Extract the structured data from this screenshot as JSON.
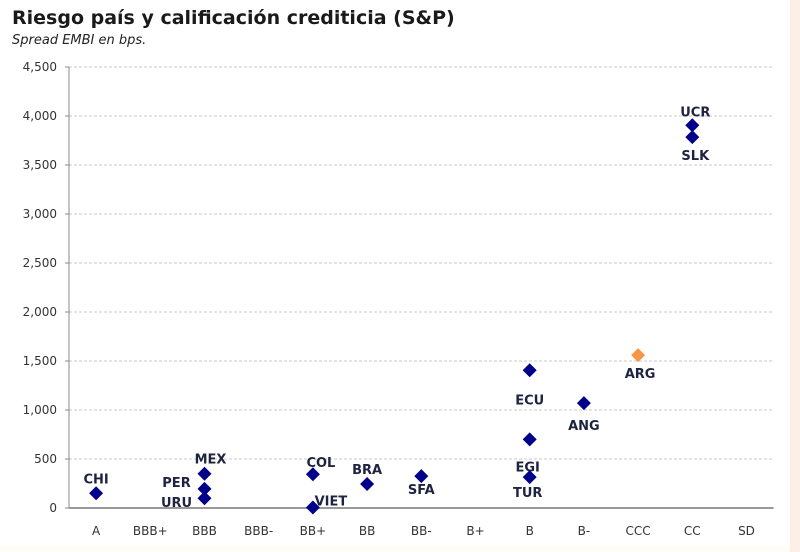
{
  "chart_data": {
    "type": "scatter",
    "title": "Riesgo país y calificación crediticia (S&P)",
    "subtitle": "Spread EMBI en bps.",
    "xlabel": "",
    "ylabel": "",
    "categories": [
      "A",
      "BBB+",
      "BBB",
      "BBB-",
      "BB+",
      "BB",
      "BB-",
      "B+",
      "B",
      "B-",
      "CCC",
      "CC",
      "SD"
    ],
    "ylim": [
      0,
      4500
    ],
    "yticks": [
      0,
      500,
      1000,
      1500,
      2000,
      2500,
      3000,
      3500,
      4000,
      4500
    ],
    "ytick_labels": [
      "0",
      "500",
      "1,000",
      "1,500",
      "2,000",
      "2,500",
      "3,000",
      "3,500",
      "4,000",
      "4,500"
    ],
    "grid": "horizontal dashed",
    "colors": {
      "default": "#00008b",
      "highlight": "#f79646"
    },
    "points": [
      {
        "label": "CHI",
        "category": "A",
        "y": 150
      },
      {
        "label": "MEX",
        "category": "BBB",
        "y": 350
      },
      {
        "label": "PER",
        "category": "BBB",
        "y": 195
      },
      {
        "label": "URU",
        "category": "BBB",
        "y": 100
      },
      {
        "label": "COL",
        "category": "BB+",
        "y": 345
      },
      {
        "label": "VIET",
        "category": "BB+",
        "y": 5
      },
      {
        "label": "BRA",
        "category": "BB",
        "y": 245
      },
      {
        "label": "SFA",
        "category": "BB-",
        "y": 325
      },
      {
        "label": "ECU",
        "category": "B",
        "y": 1405
      },
      {
        "label": "EGI",
        "category": "B",
        "y": 700
      },
      {
        "label": "TUR",
        "category": "B",
        "y": 315
      },
      {
        "label": "ANG",
        "category": "B-",
        "y": 1070
      },
      {
        "label": "ARG",
        "category": "CCC",
        "y": 1560,
        "highlight": true
      },
      {
        "label": "UCR",
        "category": "CC",
        "y": 3905
      },
      {
        "label": "SLK",
        "category": "CC",
        "y": 3785
      }
    ]
  }
}
